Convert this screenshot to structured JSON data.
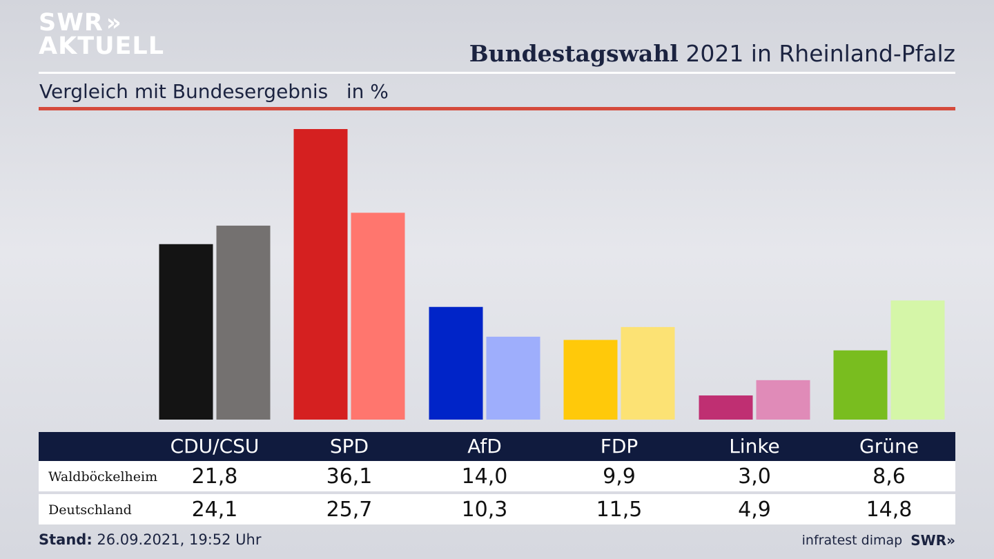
{
  "brand": {
    "logo_line1": "SWR",
    "logo_chevrons": "»",
    "logo_line2": "AKTUELL"
  },
  "header": {
    "title_bold": "Bundestagswahl",
    "title_rest": " 2021 in Rheinland-Pfalz",
    "subtitle": "Vergleich mit Bundesergebnis   in %"
  },
  "chart_data": {
    "type": "bar",
    "categories": [
      "CDU/CSU",
      "SPD",
      "AfD",
      "FDP",
      "Linke",
      "Grüne"
    ],
    "series": [
      {
        "name": "Waldböckelheim",
        "values": [
          21.8,
          36.1,
          14.0,
          9.9,
          3.0,
          8.6
        ],
        "colors": [
          "#141414",
          "#d52020",
          "#0024c8",
          "#ffc90a",
          "#bf2f72",
          "#79bd1f"
        ]
      },
      {
        "name": "Deutschland",
        "values": [
          24.1,
          25.7,
          10.3,
          11.5,
          4.9,
          14.8
        ],
        "colors": [
          "#747170",
          "#ff766e",
          "#9eaefc",
          "#fce274",
          "#e08bb8",
          "#d5f6a8"
        ]
      }
    ],
    "ylim": [
      0,
      36.1
    ],
    "grid": false
  },
  "table": {
    "headers": [
      "CDU/CSU",
      "SPD",
      "AfD",
      "FDP",
      "Linke",
      "Grüne"
    ],
    "rows": [
      {
        "label": "Waldböckelheim",
        "values": [
          "21,8",
          "36,1",
          "14,0",
          "9,9",
          "3,0",
          "8,6"
        ]
      },
      {
        "label": "Deutschland",
        "values": [
          "24,1",
          "25,7",
          "10,3",
          "11,5",
          "4,9",
          "14,8"
        ]
      }
    ]
  },
  "footer": {
    "stand_label": "Stand:",
    "stand_value": " 26.09.2021, 19:52 Uhr",
    "source": "infratest dimap",
    "source_brand": "SWR»"
  }
}
